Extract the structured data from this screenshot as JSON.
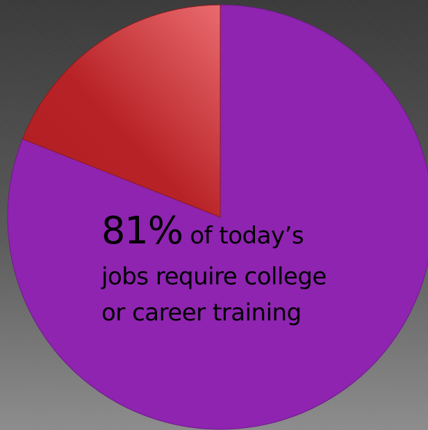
{
  "chart_data": {
    "type": "pie",
    "slices": [
      {
        "label": "81%",
        "value": 81,
        "color": "#8e24b0"
      },
      {
        "label": "",
        "value": 19,
        "color": "#c0272d"
      }
    ]
  },
  "annotation": {
    "percent": "81%",
    "line1_rest": "of today’s",
    "line2": "jobs require college",
    "line3": "or career training"
  },
  "colors": {
    "primary": "#8e24b0",
    "secondary": "#c0272d",
    "text": "#000000"
  }
}
